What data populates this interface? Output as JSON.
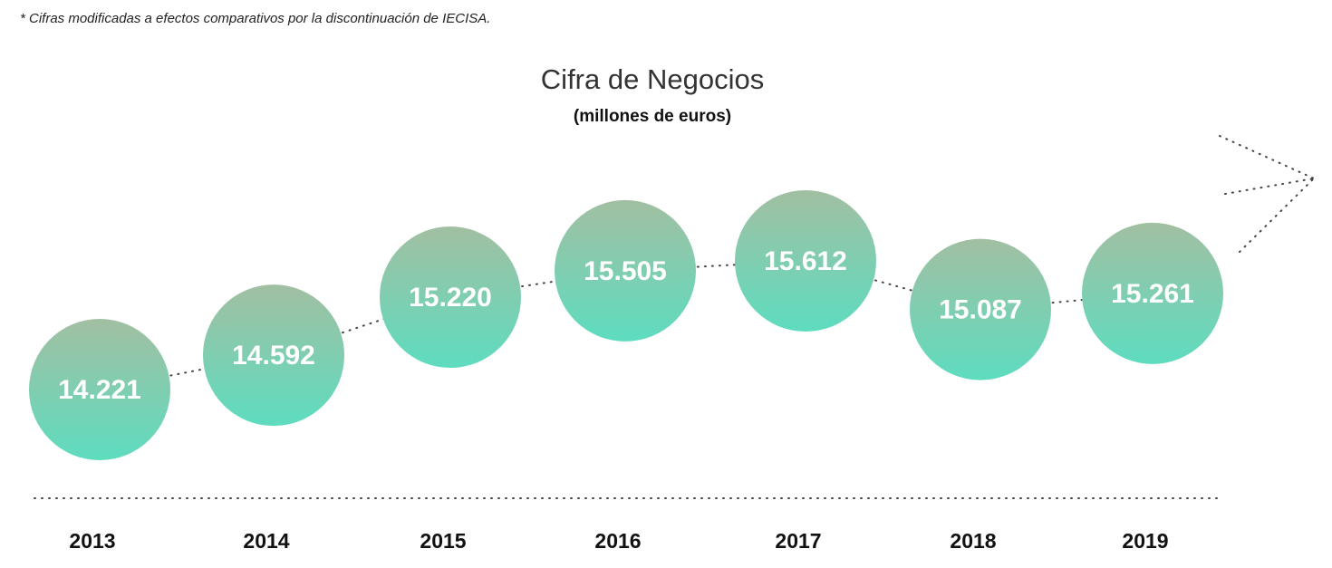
{
  "footnote": "* Cifras modificadas a efectos comparativos por la discontinuación de IECISA.",
  "colors": {
    "bubble_top": "#a2bfa2",
    "bubble_bottom": "#5edcbf",
    "dots": "#444444"
  },
  "chart_data": {
    "type": "line",
    "title": "Cifra de Negocios",
    "subtitle": "(millones de euros)",
    "categories": [
      "2013",
      "2014",
      "2015",
      "2016",
      "2017",
      "2018",
      "2019"
    ],
    "values": [
      14221,
      14592,
      15220,
      15505,
      15612,
      15087,
      15261
    ],
    "value_labels": [
      "14.221",
      "14.592",
      "15.220",
      "15.505",
      "15.612",
      "15.087",
      "15.261"
    ],
    "xlabel": "",
    "ylabel": ""
  }
}
